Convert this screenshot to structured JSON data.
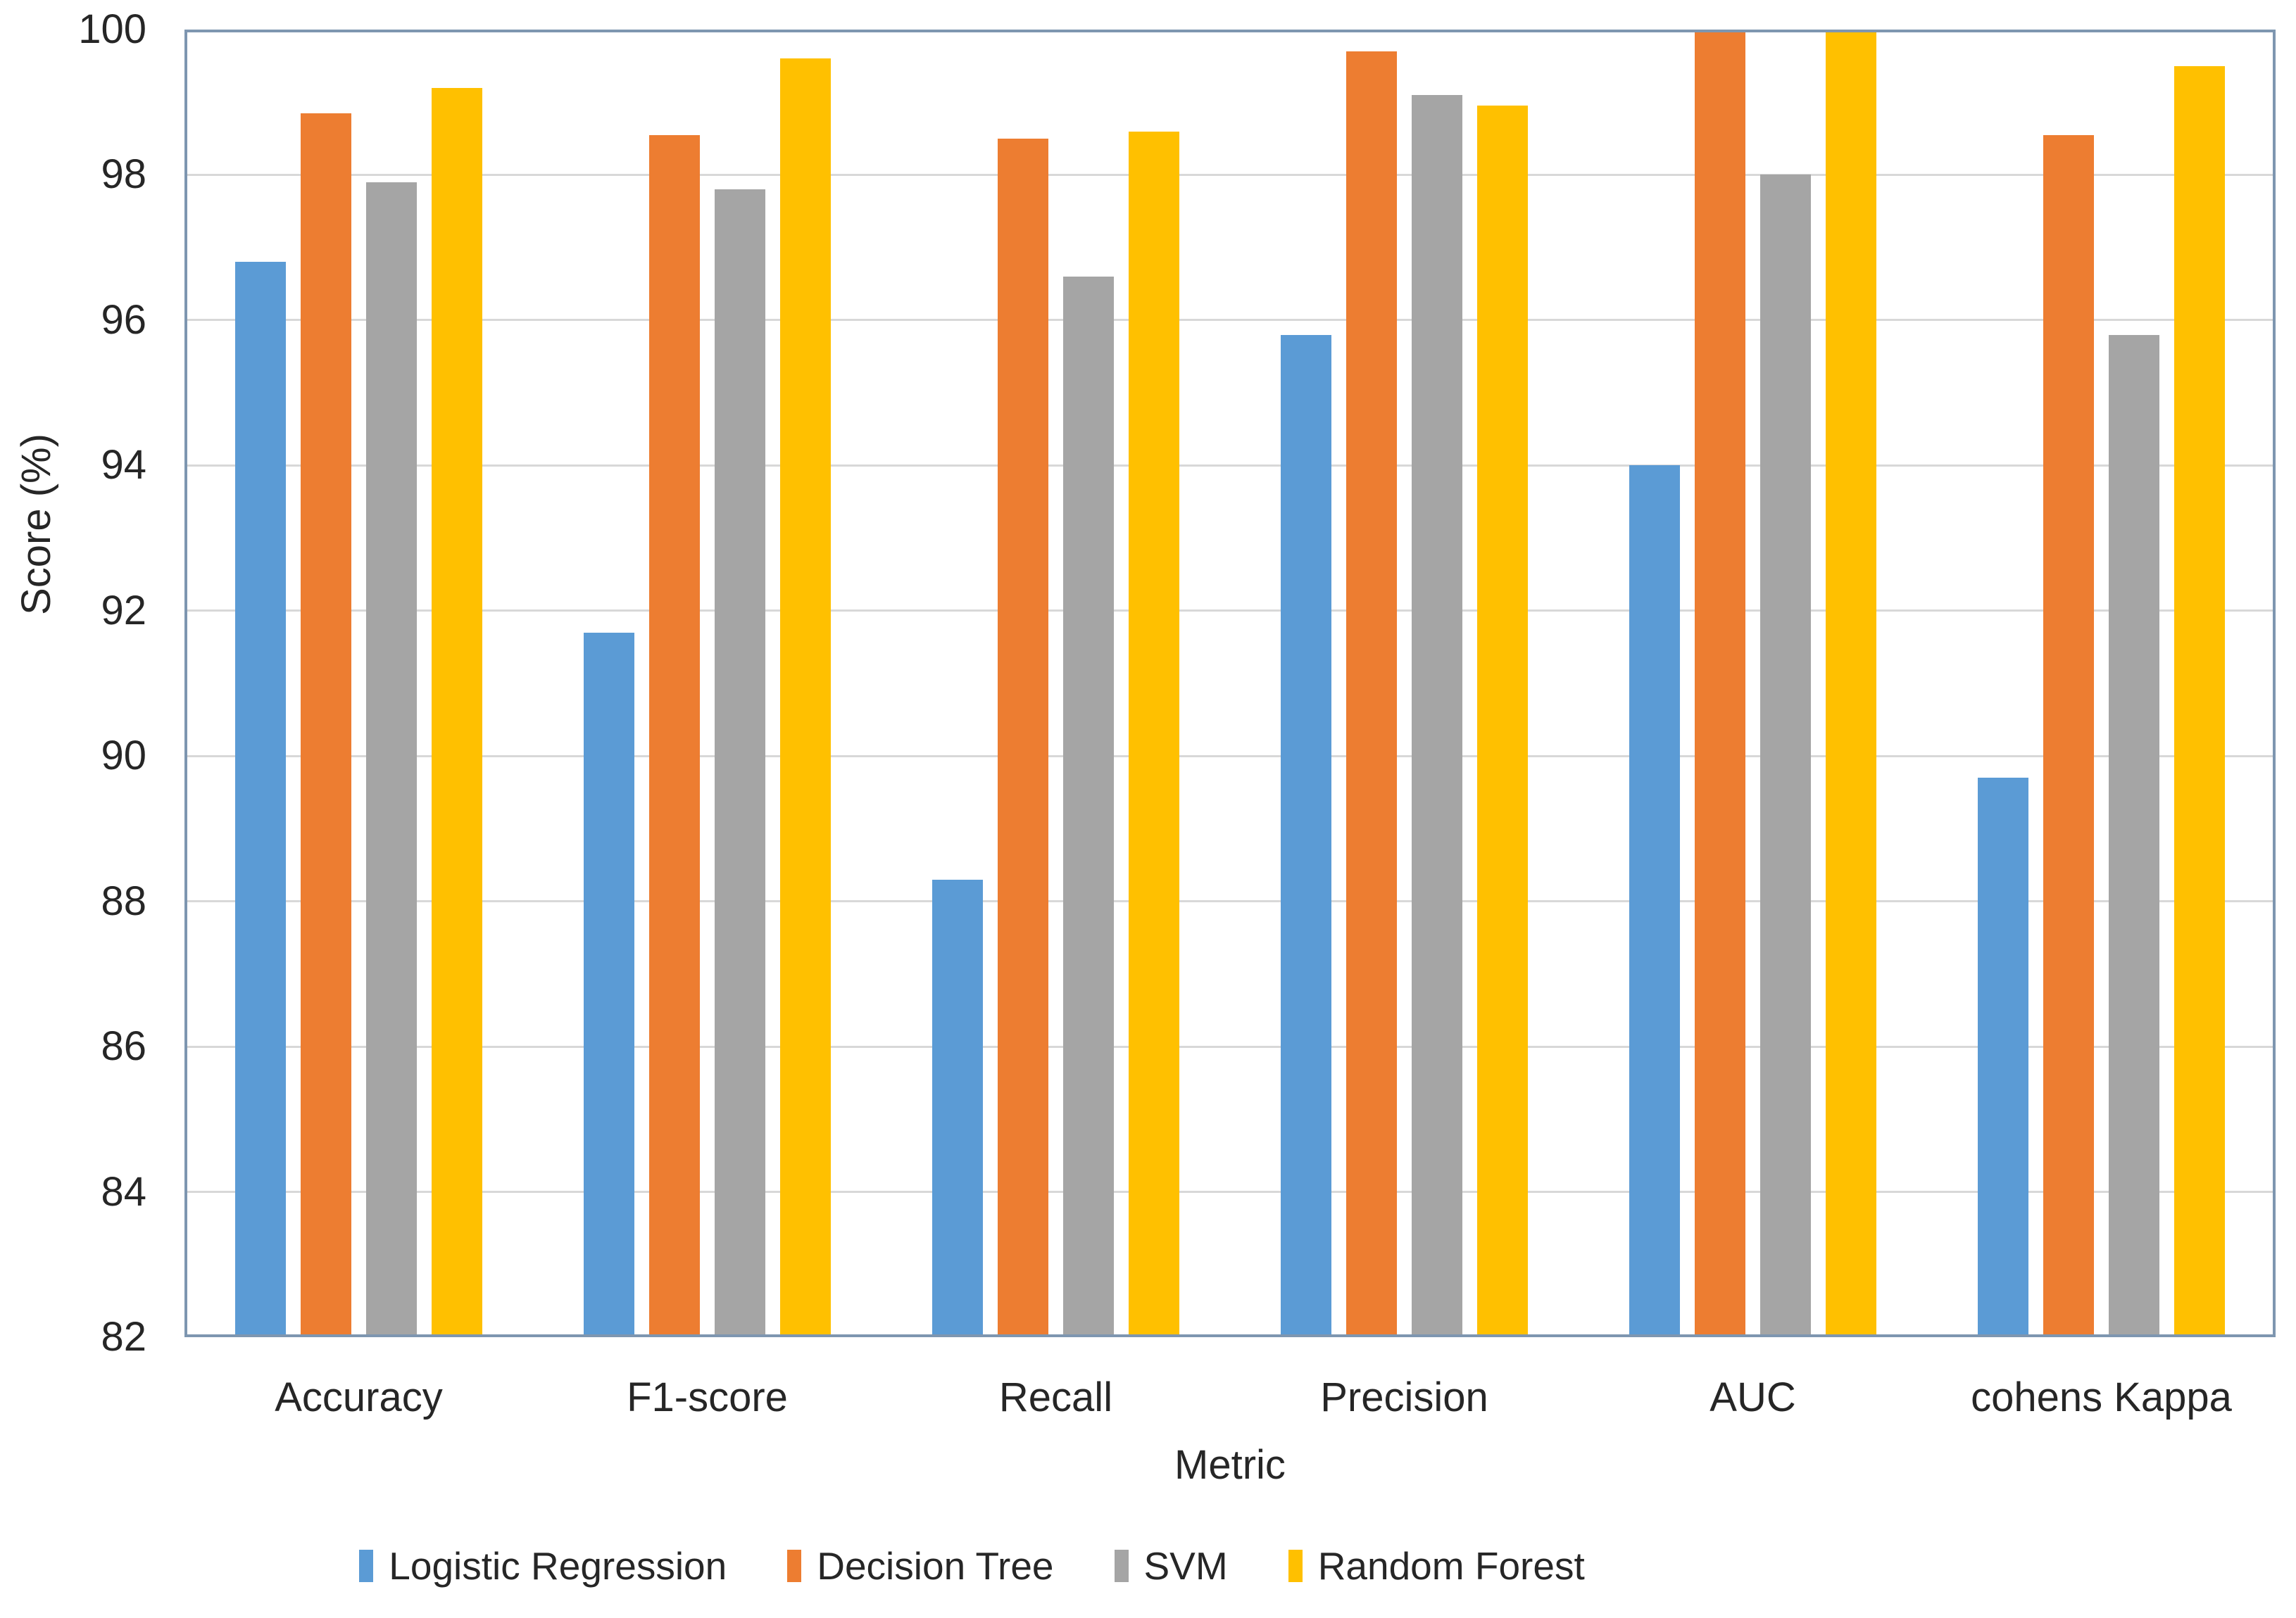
{
  "figure": {
    "background_color": "#ffffff",
    "plot_border_color": "#7e96b0",
    "gridline_color": "#d8d8d8",
    "text_color": "#262626"
  },
  "chart_data": {
    "type": "bar",
    "title": "",
    "xlabel": "Metric",
    "ylabel": "Score (%)",
    "ylim": [
      82,
      100
    ],
    "ytick_step": 2,
    "yticks": [
      82,
      84,
      86,
      88,
      90,
      92,
      94,
      96,
      98,
      100
    ],
    "grid": true,
    "legend_position": "bottom",
    "categories": [
      "Accuracy",
      "F1-score",
      "Recall",
      "Precision",
      "AUC",
      "cohens Kappa"
    ],
    "series": [
      {
        "name": "Logistic Regression",
        "color": "#5B9BD5",
        "values": [
          96.8,
          91.7,
          88.3,
          95.8,
          94.0,
          89.7
        ]
      },
      {
        "name": "Decision Tree",
        "color": "#ED7D31",
        "values": [
          98.85,
          98.55,
          98.5,
          99.7,
          100.0,
          98.55
        ]
      },
      {
        "name": "SVM",
        "color": "#A5A5A5",
        "values": [
          97.9,
          97.8,
          96.6,
          99.1,
          98.0,
          95.8
        ]
      },
      {
        "name": "Random Forest",
        "color": "#FFC000",
        "values": [
          99.2,
          99.6,
          98.6,
          98.95,
          100.0,
          99.5
        ]
      }
    ]
  }
}
